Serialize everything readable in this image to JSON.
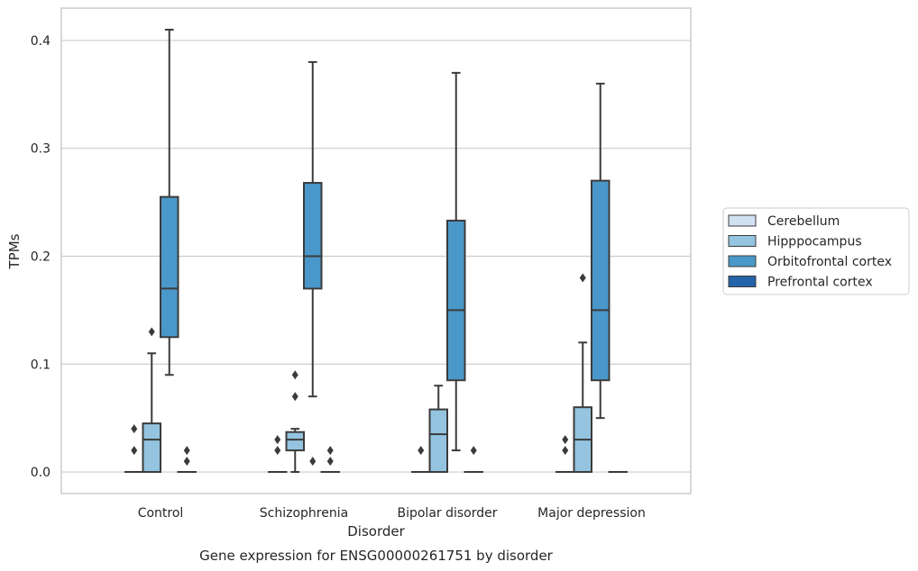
{
  "chart_data": {
    "type": "box",
    "title": "",
    "caption": "Gene expression for ENSG00000261751 by disorder",
    "xlabel": "Disorder",
    "ylabel": "TPMs",
    "ylim": [
      -0.02,
      0.43
    ],
    "yticks": [
      0.0,
      0.1,
      0.2,
      0.3,
      0.4
    ],
    "ytick_labels": [
      "0.0",
      "0.1",
      "0.2",
      "0.3",
      "0.4"
    ],
    "grid": "horizontal",
    "legend_position": "right",
    "categories": [
      "Control",
      "Schizophrenia",
      "Bipolar disorder",
      "Major depression"
    ],
    "series": [
      {
        "name": "Cerebellum",
        "color": "#d0e1f2",
        "boxes": [
          {
            "whislo": 0,
            "q1": 0,
            "med": 0,
            "q3": 0,
            "whishi": 0,
            "fliers": [
              0.02,
              0.04
            ]
          },
          {
            "whislo": 0,
            "q1": 0,
            "med": 0,
            "q3": 0,
            "whishi": 0,
            "fliers": [
              0.02,
              0.03
            ]
          },
          {
            "whislo": 0,
            "q1": 0,
            "med": 0,
            "q3": 0,
            "whishi": 0,
            "fliers": [
              0.02
            ]
          },
          {
            "whislo": 0,
            "q1": 0,
            "med": 0,
            "q3": 0,
            "whishi": 0,
            "fliers": [
              0.02,
              0.03
            ]
          }
        ]
      },
      {
        "name": "Hipppocampus",
        "color": "#94c4df",
        "boxes": [
          {
            "whislo": 0,
            "q1": 0,
            "med": 0.03,
            "q3": 0.045,
            "whishi": 0.11,
            "fliers": [
              0.13
            ]
          },
          {
            "whislo": 0,
            "q1": 0.02,
            "med": 0.03,
            "q3": 0.037,
            "whishi": 0.04,
            "fliers": [
              0.07,
              0.09
            ]
          },
          {
            "whislo": 0,
            "q1": 0,
            "med": 0.035,
            "q3": 0.058,
            "whishi": 0.08,
            "fliers": []
          },
          {
            "whislo": 0,
            "q1": 0,
            "med": 0.03,
            "q3": 0.06,
            "whishi": 0.12,
            "fliers": [
              0.18
            ]
          }
        ]
      },
      {
        "name": "Orbitofrontal cortex",
        "color": "#4a98c9",
        "boxes": [
          {
            "whislo": 0.09,
            "q1": 0.125,
            "med": 0.17,
            "q3": 0.255,
            "whishi": 0.41,
            "fliers": []
          },
          {
            "whislo": 0.07,
            "q1": 0.17,
            "med": 0.2,
            "q3": 0.268,
            "whishi": 0.38,
            "fliers": [
              0.01
            ]
          },
          {
            "whislo": 0.02,
            "q1": 0.085,
            "med": 0.15,
            "q3": 0.233,
            "whishi": 0.37,
            "fliers": []
          },
          {
            "whislo": 0.05,
            "q1": 0.085,
            "med": 0.15,
            "q3": 0.27,
            "whishi": 0.36,
            "fliers": []
          }
        ]
      },
      {
        "name": "Prefrontal cortex",
        "color": "#2464a8",
        "boxes": [
          {
            "whislo": 0,
            "q1": 0,
            "med": 0,
            "q3": 0,
            "whishi": 0,
            "fliers": [
              0.01,
              0.02
            ]
          },
          {
            "whislo": 0,
            "q1": 0,
            "med": 0,
            "q3": 0,
            "whishi": 0,
            "fliers": [
              0.01,
              0.02
            ]
          },
          {
            "whislo": 0,
            "q1": 0,
            "med": 0,
            "q3": 0,
            "whishi": 0,
            "fliers": [
              0.02
            ]
          },
          {
            "whislo": 0,
            "q1": 0,
            "med": 0,
            "q3": 0,
            "whishi": 0,
            "fliers": []
          }
        ]
      }
    ]
  },
  "colors": {
    "grid": "#cccccc",
    "frame": "#cccccc",
    "box_edge": "#3b3b3b",
    "text": "#262626"
  }
}
